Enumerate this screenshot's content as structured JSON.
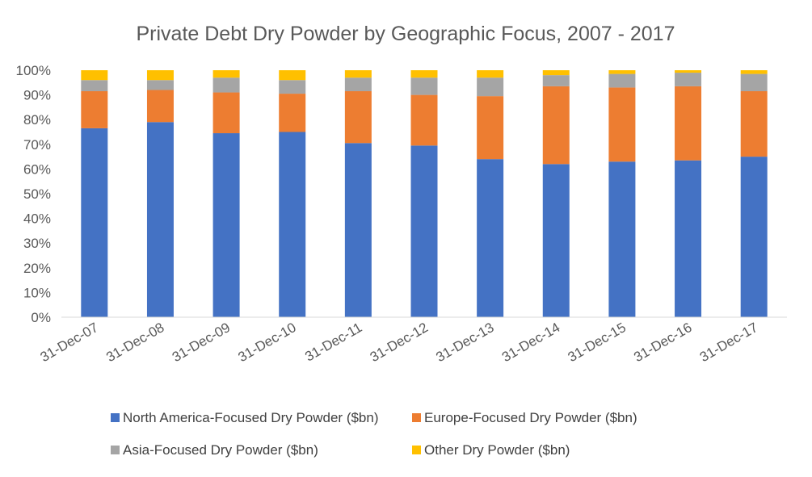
{
  "chart_data": {
    "type": "bar",
    "stacked": true,
    "percent": true,
    "title": "Private Debt Dry Powder by Geographic Focus, 2007 - 2017",
    "xlabel": "",
    "ylabel": "",
    "ylim": [
      0,
      100
    ],
    "y_ticks": [
      "0%",
      "10%",
      "20%",
      "30%",
      "40%",
      "50%",
      "60%",
      "70%",
      "80%",
      "90%",
      "100%"
    ],
    "grid": false,
    "legend_position": "bottom",
    "categories": [
      "31-Dec-07",
      "31-Dec-08",
      "31-Dec-09",
      "31-Dec-10",
      "31-Dec-11",
      "31-Dec-12",
      "31-Dec-13",
      "31-Dec-14",
      "31-Dec-15",
      "31-Dec-16",
      "31-Dec-17"
    ],
    "series": [
      {
        "name": "North America-Focused Dry Powder ($bn)",
        "color": "#4472C4",
        "values": [
          76.5,
          79,
          74.5,
          75,
          70.5,
          69.5,
          64,
          62,
          63,
          63.5,
          65
        ]
      },
      {
        "name": "Europe-Focused Dry Powder ($bn)",
        "color": "#ED7D31",
        "values": [
          15,
          13,
          16.5,
          15.5,
          21,
          20.5,
          25.5,
          31.5,
          30,
          30,
          26.5
        ]
      },
      {
        "name": "Asia-Focused Dry Powder ($bn)",
        "color": "#A5A5A5",
        "values": [
          4.5,
          4,
          6,
          5.5,
          5.5,
          7,
          7.5,
          4.5,
          5.5,
          5.5,
          7
        ]
      },
      {
        "name": "Other Dry Powder ($bn)",
        "color": "#FFC000",
        "values": [
          4,
          4,
          3,
          4,
          3,
          3,
          3,
          2,
          1.5,
          1,
          1.5
        ]
      }
    ]
  }
}
